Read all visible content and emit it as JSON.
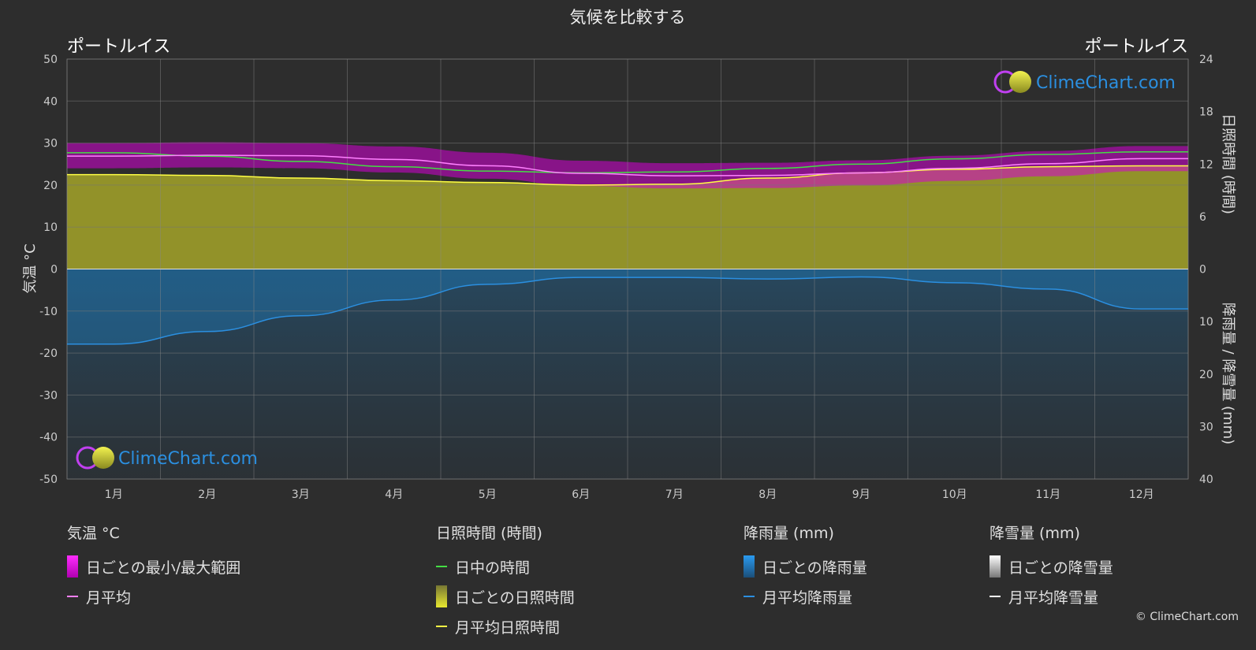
{
  "title": "気候を比較する",
  "location_left": "ポートルイス",
  "location_right": "ポートルイス",
  "axis": {
    "left_label": "気温 °C",
    "right_top_label": "日照時間 (時間)",
    "right_bottom_label": "降雨量 / 降雪量 (mm)"
  },
  "brand": "ClimeChart.com",
  "copyright": "© ClimeChart.com",
  "colors": {
    "background": "#2d2d2d",
    "temp_range": "#d400d4",
    "temp_avg": "#ff80ff",
    "daylight": "#44dd44",
    "sunshine_fill": "#a8a828",
    "sunshine_avg": "#ffff44",
    "rain": "#1a86d0",
    "rain_avg": "#2b8fe0",
    "snow_avg": "#ffffff",
    "brand_text": "#2b8fe0"
  },
  "chart_data": {
    "type": "line",
    "categories": [
      "1月",
      "2月",
      "3月",
      "4月",
      "5月",
      "6月",
      "7月",
      "8月",
      "9月",
      "10月",
      "11月",
      "12月"
    ],
    "temp_axis": {
      "ylim": [
        -50,
        50
      ],
      "ticks": [
        50,
        40,
        30,
        20,
        10,
        0,
        -10,
        -20,
        -30,
        -40,
        -50
      ]
    },
    "sunshine_axis": {
      "ylim": [
        0,
        24
      ],
      "ticks": [
        24,
        18,
        12,
        6,
        0
      ]
    },
    "precip_axis": {
      "ylim": [
        0,
        40
      ],
      "ticks": [
        0,
        10,
        20,
        30,
        40
      ]
    },
    "series": [
      {
        "name": "日中の時間",
        "unit": "hours",
        "values": [
          13.3,
          12.9,
          12.3,
          11.7,
          11.2,
          11.0,
          11.1,
          11.5,
          12.0,
          12.6,
          13.1,
          13.4
        ]
      },
      {
        "name": "月平均日照時間",
        "unit": "hours",
        "values": [
          10.8,
          10.7,
          10.4,
          10.1,
          9.9,
          9.6,
          9.7,
          10.4,
          11.0,
          11.4,
          11.7,
          11.8
        ]
      },
      {
        "name": "月平均",
        "unit": "°C",
        "values": [
          26.9,
          27.1,
          27.0,
          26.1,
          24.6,
          22.8,
          22.2,
          22.3,
          22.9,
          24.0,
          25.1,
          26.3
        ]
      },
      {
        "name": "日ごとの最小/最大範囲",
        "unit": "°C",
        "min": [
          24.0,
          24.2,
          24.0,
          23.0,
          21.5,
          19.8,
          19.2,
          19.3,
          19.9,
          21.0,
          22.1,
          23.3
        ],
        "max": [
          30.0,
          30.2,
          30.0,
          29.2,
          27.7,
          25.8,
          25.2,
          25.3,
          25.9,
          27.0,
          28.1,
          29.3
        ]
      },
      {
        "name": "月平均降雨量",
        "unit": "mm",
        "values": [
          14.3,
          11.9,
          8.9,
          5.9,
          2.9,
          1.6,
          1.6,
          1.9,
          1.5,
          2.6,
          3.8,
          7.6
        ]
      },
      {
        "name": "月平均降雪量",
        "unit": "mm",
        "values": [
          0,
          0,
          0,
          0,
          0,
          0,
          0,
          0,
          0,
          0,
          0,
          0
        ]
      }
    ]
  },
  "legend": {
    "temp": {
      "head": "気温 °C",
      "range": "日ごとの最小/最大範囲",
      "avg": "月平均"
    },
    "sun": {
      "head": "日照時間 (時間)",
      "daylight": "日中の時間",
      "daily": "日ごとの日照時間",
      "avg": "月平均日照時間"
    },
    "rain": {
      "head": "降雨量 (mm)",
      "daily": "日ごとの降雨量",
      "avg": "月平均降雨量"
    },
    "snow": {
      "head": "降雪量 (mm)",
      "daily": "日ごとの降雪量",
      "avg": "月平均降雪量"
    }
  }
}
